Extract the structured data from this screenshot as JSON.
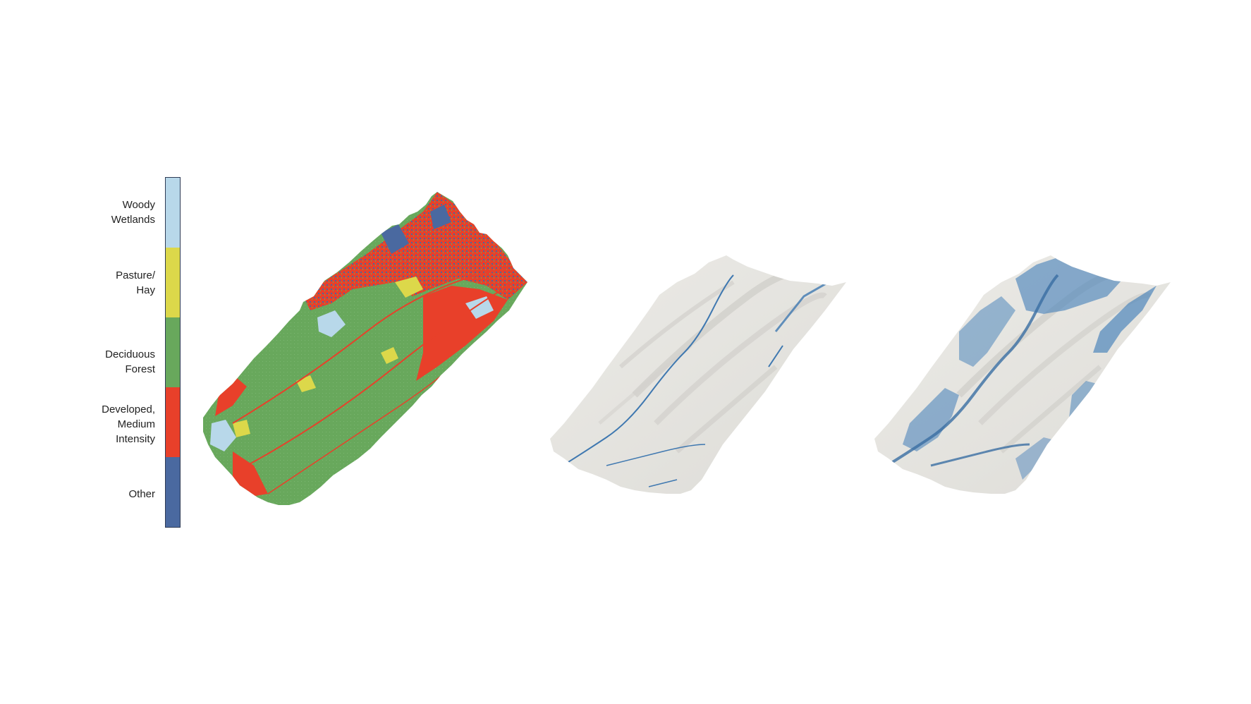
{
  "legend": {
    "items": [
      {
        "lines": [
          "Woody",
          "Wetlands"
        ],
        "color": "#b8d8ea"
      },
      {
        "lines": [
          "Pasture/",
          "Hay"
        ],
        "color": "#dcd84a"
      },
      {
        "lines": [
          "Deciduous",
          "Forest"
        ],
        "color": "#68a85c"
      },
      {
        "lines": [
          "Developed,",
          "Medium",
          "Intensity"
        ],
        "color": "#e8402a"
      },
      {
        "lines": [
          "Other"
        ],
        "color": "#4a69a0"
      }
    ]
  },
  "maps": {
    "land_cover_panel": {
      "forest_color": "#68a85c",
      "developed_color": "#e8402a",
      "wetland_color": "#b8d8ea",
      "pasture_color": "#dcd84a",
      "other_color": "#4a69a0"
    },
    "terrain_rivers_panel": {
      "terrain_color": "#e6e5e1",
      "shade_color": "#c9c8c3",
      "water_color": "#3f78b0"
    },
    "terrain_flood_panel": {
      "terrain_color": "#e6e5e1",
      "shade_color": "#c9c8c3",
      "water_color": "#4f86bb"
    }
  }
}
